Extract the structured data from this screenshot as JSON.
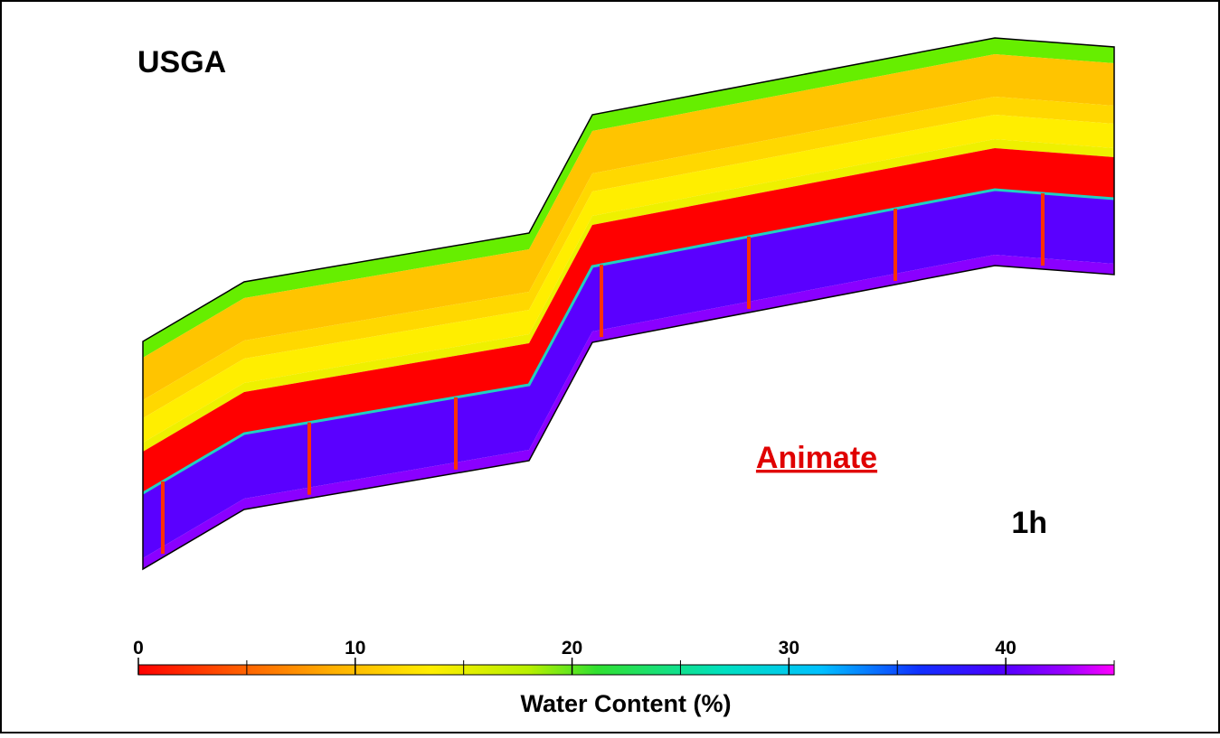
{
  "title": "USGA",
  "link": "Animate",
  "time": "1h",
  "colorbar": {
    "label": "Water Content (%)",
    "lim": [
      0,
      45
    ],
    "ticks": [
      0,
      10,
      20,
      30,
      40
    ],
    "minor_ticks": [
      5,
      15,
      25,
      35,
      45
    ]
  }
}
